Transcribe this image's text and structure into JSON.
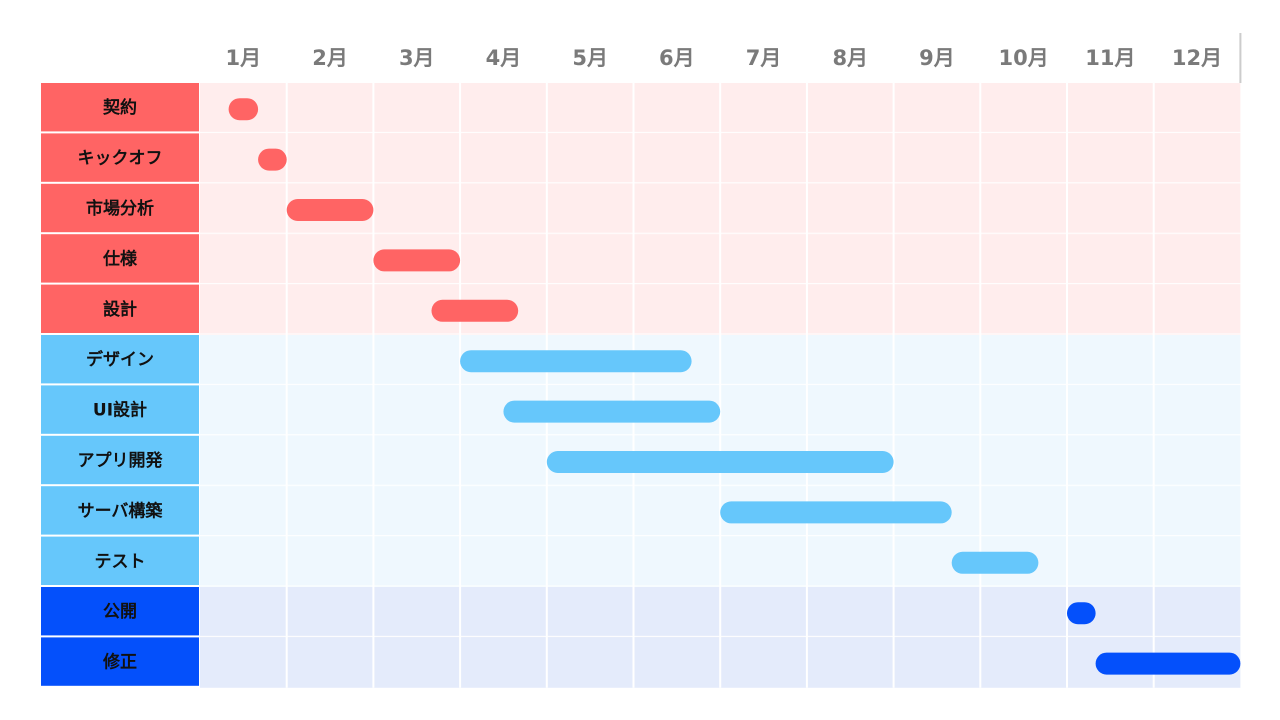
{
  "chart_data": {
    "type": "gantt",
    "months": [
      "1月",
      "2月",
      "3月",
      "4月",
      "5月",
      "6月",
      "7月",
      "8月",
      "9月",
      "10月",
      "11月",
      "12月"
    ],
    "groups": [
      {
        "key": "planning",
        "label_bg": "#ff6464",
        "row_bg": "#ffeded",
        "bar_color": "#ff6464"
      },
      {
        "key": "development",
        "label_bg": "#66c7fb",
        "row_bg": "#eff8fe",
        "bar_color": "#66c7fb"
      },
      {
        "key": "release",
        "label_bg": "#0450fb",
        "row_bg": "#e4ebfb",
        "bar_color": "#0450fb"
      }
    ],
    "tasks": [
      {
        "name": "契約",
        "group": "planning",
        "start": 0.33,
        "end": 0.67
      },
      {
        "name": "キックオフ",
        "group": "planning",
        "start": 0.67,
        "end": 1.0
      },
      {
        "name": "市場分析",
        "group": "planning",
        "start": 1.0,
        "end": 2.0
      },
      {
        "name": "仕様",
        "group": "planning",
        "start": 2.0,
        "end": 3.0
      },
      {
        "name": "設計",
        "group": "planning",
        "start": 2.67,
        "end": 3.67
      },
      {
        "name": "デザイン",
        "group": "development",
        "start": 3.0,
        "end": 5.67
      },
      {
        "name": "UI設計",
        "group": "development",
        "start": 3.5,
        "end": 6.0
      },
      {
        "name": "アプリ開発",
        "group": "development",
        "start": 4.0,
        "end": 8.0
      },
      {
        "name": "サーバ構築",
        "group": "development",
        "start": 6.0,
        "end": 8.67
      },
      {
        "name": "テスト",
        "group": "development",
        "start": 8.67,
        "end": 9.67
      },
      {
        "name": "公開",
        "group": "release",
        "start": 10.0,
        "end": 10.33
      },
      {
        "name": "修正",
        "group": "release",
        "start": 10.33,
        "end": 12.0
      }
    ]
  }
}
